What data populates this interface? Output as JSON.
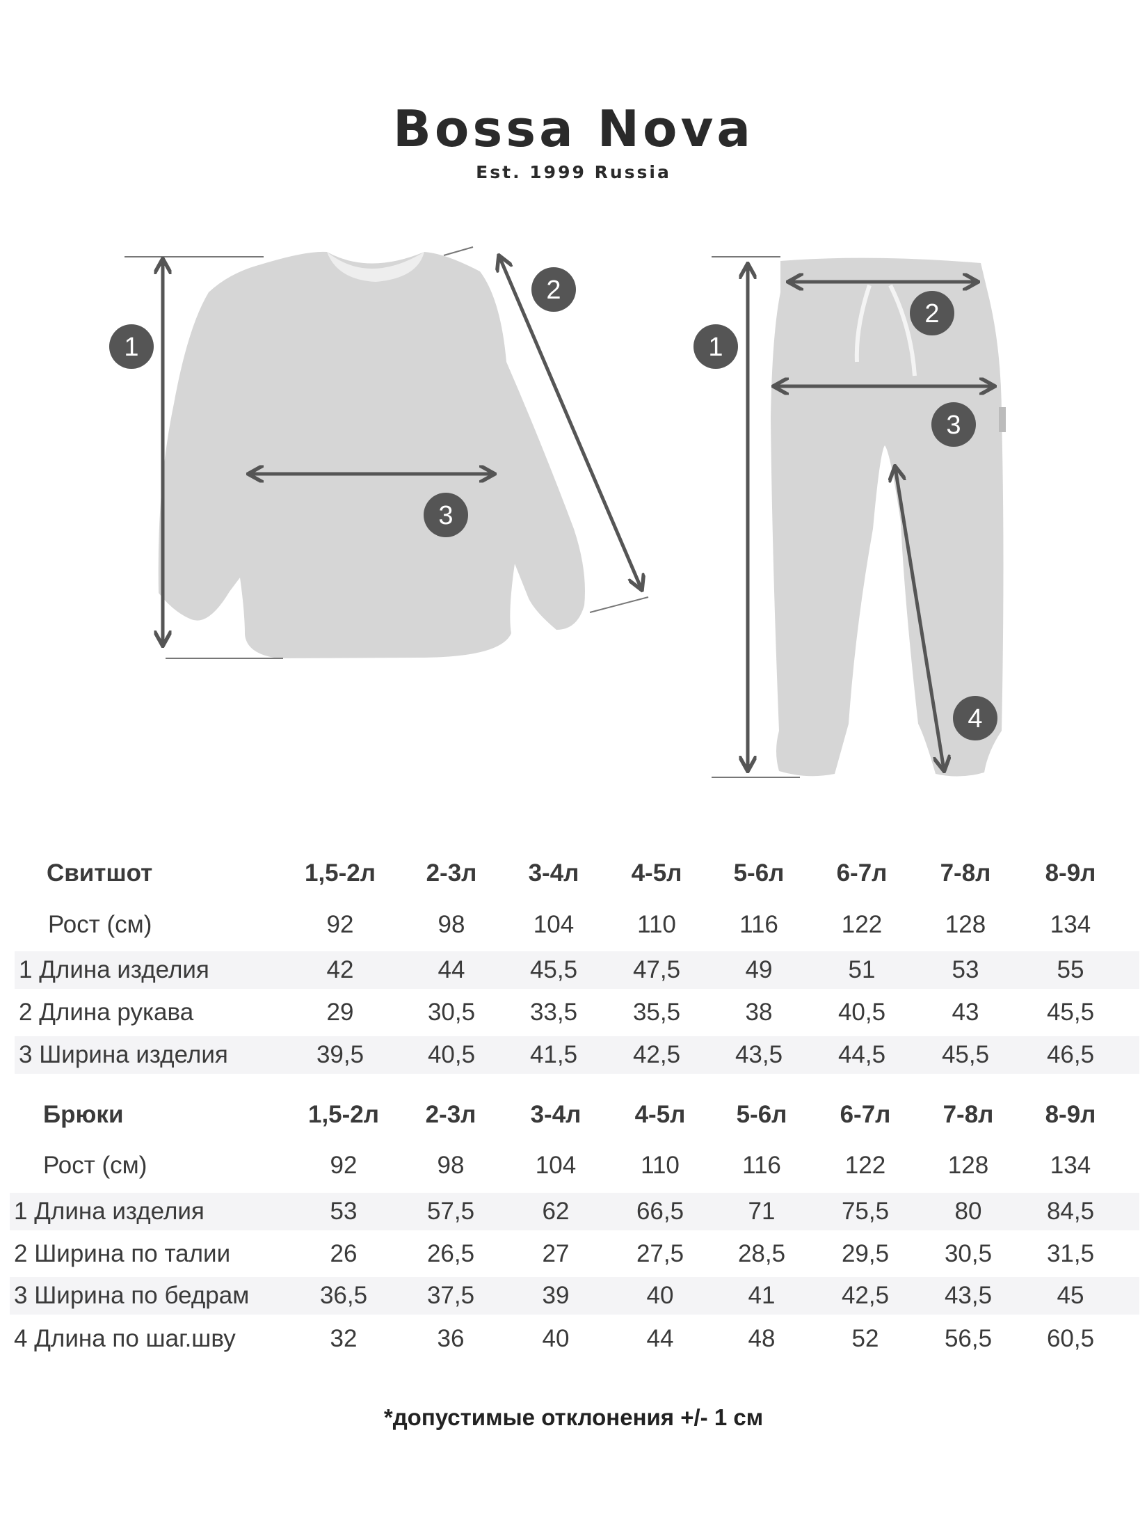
{
  "logo": {
    "brand": "Bossa Nova",
    "tagline": "Est. 1999 Russia"
  },
  "diagram": {
    "arrow_color": "#555555",
    "garment_color": "#d6d6d6",
    "sweatshirt_markers": [
      "1",
      "2",
      "3"
    ],
    "pants_markers": [
      "1",
      "2",
      "3",
      "4"
    ]
  },
  "sweatshirt_table": {
    "title": "Свитшот",
    "sizes": [
      "1,5-2л",
      "2-3л",
      "3-4л",
      "4-5л",
      "5-6л",
      "6-7л",
      "7-8л",
      "8-9л"
    ],
    "rows": [
      {
        "label": "Рост (см)",
        "values": [
          "92",
          "98",
          "104",
          "110",
          "116",
          "122",
          "128",
          "134"
        ]
      },
      {
        "label": "1 Длина изделия",
        "values": [
          "42",
          "44",
          "45,5",
          "47,5",
          "49",
          "51",
          "53",
          "55"
        ]
      },
      {
        "label": "2 Длина рукава",
        "values": [
          "29",
          "30,5",
          "33,5",
          "35,5",
          "38",
          "40,5",
          "43",
          "45,5"
        ]
      },
      {
        "label": "3 Ширина изделия",
        "values": [
          "39,5",
          "40,5",
          "41,5",
          "42,5",
          "43,5",
          "44,5",
          "45,5",
          "46,5"
        ]
      }
    ]
  },
  "pants_table": {
    "title": "Брюки",
    "sizes": [
      "1,5-2л",
      "2-3л",
      "3-4л",
      "4-5л",
      "5-6л",
      "6-7л",
      "7-8л",
      "8-9л"
    ],
    "rows": [
      {
        "label": "Рост (см)",
        "values": [
          "92",
          "98",
          "104",
          "110",
          "116",
          "122",
          "128",
          "134"
        ]
      },
      {
        "label": "1 Длина изделия",
        "values": [
          "53",
          "57,5",
          "62",
          "66,5",
          "71",
          "75,5",
          "80",
          "84,5"
        ]
      },
      {
        "label": "2 Ширина по талии",
        "values": [
          "26",
          "26,5",
          "27",
          "27,5",
          "28,5",
          "29,5",
          "30,5",
          "31,5"
        ]
      },
      {
        "label": "3 Ширина по бедрам",
        "values": [
          "36,5",
          "37,5",
          "39",
          "40",
          "41",
          "42,5",
          "43,5",
          "45"
        ]
      },
      {
        "label": "4 Длина по шаг.шву",
        "values": [
          "32",
          "36",
          "40",
          "44",
          "48",
          "52",
          "56,5",
          "60,5"
        ]
      }
    ]
  },
  "footnote": "*допустимые отклонения +/- 1 см"
}
